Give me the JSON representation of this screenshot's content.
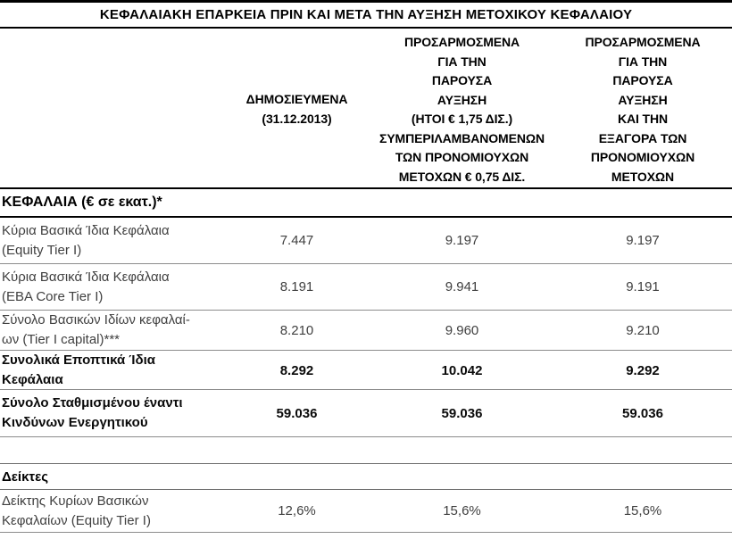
{
  "title": "ΚΕΦΑΛΑΙΑΚΗ ΕΠΑΡΚΕΙΑ ΠΡΙΝ ΚΑΙ ΜΕΤΑ ΤΗΝ ΑΥΞΗΣΗ ΜΕΤΟΧΙΚΟΥ ΚΕΦΑΛΑΙΟΥ",
  "header": {
    "col_published": "ΔΗΜΟΣΙΕΥΜΕΝΑ\n(31.12.2013)",
    "col_adjusted_increase": "ΠΡΟΣΑΡΜΟΣΜΕΝΑ\nΓΙΑ ΤΗΝ\nΠΑΡΟΥΣΑ\nΑΥΞΗΣΗ\n(ΗΤΟΙ € 1,75 ΔΙΣ.)\nΣΥΜΠΕΡΙΛΑΜΒΑΝΟΜΕΝΩΝ\nΤΩΝ ΠΡΟΝΟΜΙΟΥΧΩΝ\nΜΕΤΟΧΩΝ € 0,75 ΔΙΣ.",
    "col_adjusted_redemption": "ΠΡΟΣΑΡΜΟΣΜΕΝΑ\nΓΙΑ ΤΗΝ\nΠΑΡΟΥΣΑ\nΑΥΞΗΣΗ\nΚΑΙ ΤΗΝ\nΕΞΑΓΟΡΑ ΤΩΝ\nΠΡΟΝΟΜΙΟΥΧΩΝ\nΜΕΤΟΧΩΝ"
  },
  "sections": {
    "capital": "ΚΕΦΑΛΑΙΑ (€ σε εκατ.)*",
    "ratios": "Δείκτες"
  },
  "rows": [
    {
      "label": "Κύρια Βασικά Ίδια Κεφάλαια\n(Equity Tier I)",
      "values": [
        "7.447",
        "9.197",
        "9.197"
      ]
    },
    {
      "label": "Κύρια Βασικά Ίδια Κεφάλαια\n(EBA Core Tier I)",
      "values": [
        "8.191",
        "9.941",
        "9.191"
      ]
    },
    {
      "label": "Σύνολο Βασικών Ιδίων κεφαλαί-\nων (Tier I capital)***",
      "values": [
        "8.210",
        "9.960",
        "9.210"
      ]
    },
    {
      "label": "Συνολικά Εποπτικά Ίδια\nΚεφάλαια",
      "values": [
        "8.292",
        "10.042",
        "9.292"
      ]
    },
    {
      "label": "Σύνολο Σταθμισμένου έναντι\nΚινδύνων Ενεργητικού",
      "values": [
        "59.036",
        "59.036",
        "59.036"
      ]
    },
    {
      "label": "Δείκτης Κυρίων Βασικών\nΚεφαλαίων (Equity Tier I)",
      "values": [
        "12,6%",
        "15,6%",
        "15,6%"
      ]
    }
  ],
  "colors": {
    "line_black": "#000000",
    "line_gray": "#8c8c8c",
    "text_body": "#404040"
  }
}
